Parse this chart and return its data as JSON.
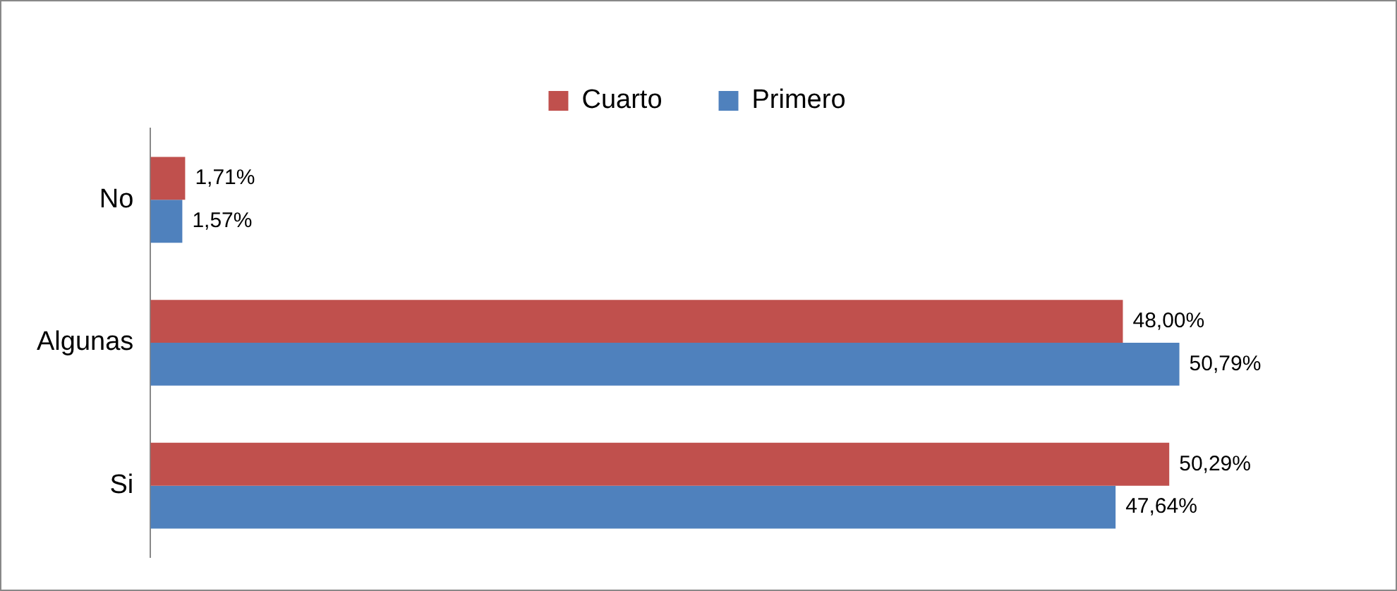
{
  "chart_data": {
    "type": "bar",
    "orientation": "horizontal",
    "categories": [
      "No",
      "Algunas",
      "Si"
    ],
    "series": [
      {
        "name": "Cuarto",
        "color": "#c0504d",
        "values": [
          1.71,
          48.0,
          50.29
        ],
        "value_labels": [
          "1,71%",
          "48,00%",
          "50,29%"
        ]
      },
      {
        "name": "Primero",
        "color": "#4f81bd",
        "values": [
          1.57,
          50.79,
          47.64
        ],
        "value_labels": [
          "1,57%",
          "50,79%",
          "47,64%"
        ]
      }
    ],
    "tick_labels": "y",
    "legend": "top",
    "grid": false
  }
}
